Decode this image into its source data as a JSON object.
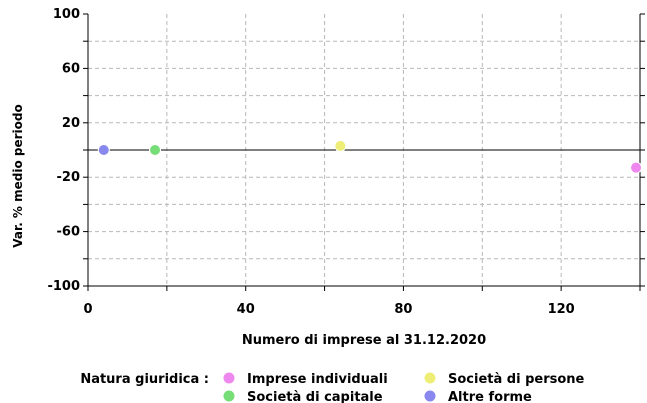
{
  "chart_data": {
    "type": "scatter",
    "title": "",
    "xlabel": "Numero di imprese al 31.12.2020",
    "ylabel": "Var. % medio periodo",
    "xlim": [
      0,
      140
    ],
    "ylim": [
      -100,
      100
    ],
    "x_ticks": [
      0,
      40,
      80,
      120
    ],
    "y_ticks": [
      100,
      60,
      20,
      -20,
      -60,
      -100
    ],
    "grid": true,
    "zero_line": true,
    "legend": {
      "title": "Natura giuridica :",
      "placement": "bottom"
    },
    "series": [
      {
        "name": "Imprese individuali",
        "color": "#ee88ee",
        "points": [
          {
            "x": 139,
            "y": -13
          }
        ]
      },
      {
        "name": "Società di persone",
        "color": "#eeee77",
        "points": [
          {
            "x": 64,
            "y": 3
          }
        ]
      },
      {
        "name": "Società di capitale",
        "color": "#77dd77",
        "points": [
          {
            "x": 17,
            "y": 0
          }
        ]
      },
      {
        "name": "Altre forme",
        "color": "#8888ee",
        "points": [
          {
            "x": 4,
            "y": 0
          }
        ]
      }
    ]
  }
}
